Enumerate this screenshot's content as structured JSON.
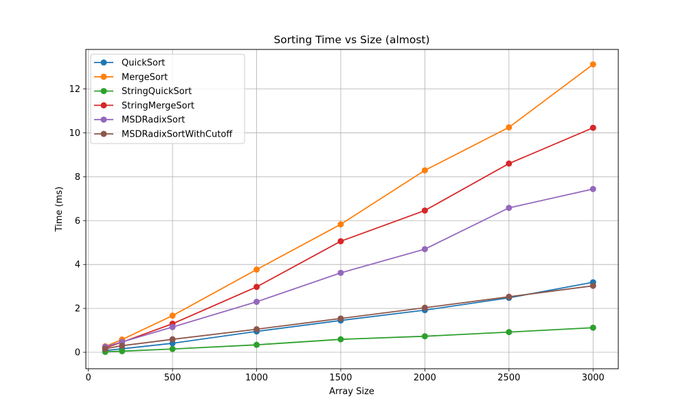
{
  "chart_data": {
    "type": "line",
    "title": "Sorting Time vs Size (almost)",
    "xlabel": "Array Size",
    "ylabel": "Time (ms)",
    "xlim": [
      -15,
      3150
    ],
    "ylim": [
      -0.75,
      13.8
    ],
    "xticks": [
      0,
      500,
      1000,
      1500,
      2000,
      2500,
      3000
    ],
    "yticks": [
      0,
      2,
      4,
      6,
      8,
      10,
      12
    ],
    "grid": true,
    "legend_position": "top-left",
    "x": [
      100,
      200,
      500,
      1000,
      1500,
      2000,
      2500,
      3000
    ],
    "series": [
      {
        "name": "QuickSort",
        "color": "#1f77b4",
        "values": [
          0.08,
          0.16,
          0.41,
          0.95,
          1.45,
          1.92,
          2.48,
          3.19
        ]
      },
      {
        "name": "MergeSort",
        "color": "#ff7f0e",
        "values": [
          0.27,
          0.58,
          1.67,
          3.77,
          5.83,
          8.29,
          10.25,
          13.12
        ]
      },
      {
        "name": "StringQuickSort",
        "color": "#2ca02c",
        "values": [
          0.02,
          0.05,
          0.15,
          0.34,
          0.59,
          0.73,
          0.92,
          1.12
        ]
      },
      {
        "name": "StringMergeSort",
        "color": "#d62728",
        "values": [
          0.2,
          0.46,
          1.3,
          2.98,
          5.06,
          6.46,
          8.6,
          10.23
        ]
      },
      {
        "name": "MSDRadixSort",
        "color": "#9467bd",
        "values": [
          0.25,
          0.47,
          1.15,
          2.3,
          3.62,
          4.7,
          6.58,
          7.44
        ]
      },
      {
        "name": "MSDRadixSortWithCutoff",
        "color": "#8c564b",
        "values": [
          0.16,
          0.3,
          0.59,
          1.05,
          1.54,
          2.03,
          2.53,
          3.03
        ]
      }
    ]
  }
}
